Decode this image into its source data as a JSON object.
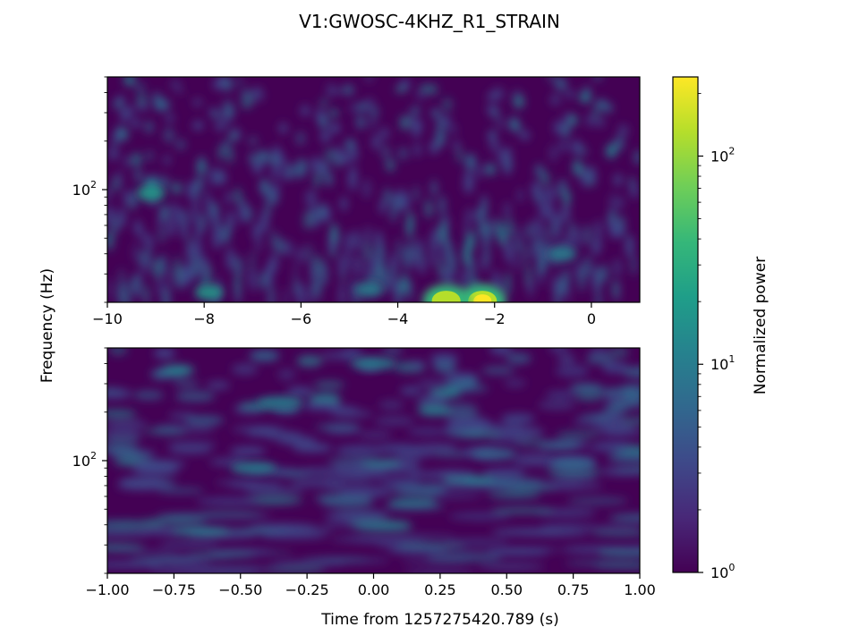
{
  "title": "V1:GWOSC-4KHZ_R1_STRAIN",
  "ylabel": "Frequency (Hz)",
  "xlabel": "Time from 1257275420.789 (s)",
  "colorbar": {
    "label": "Normalized power",
    "scale": "log",
    "range": [
      1,
      240
    ],
    "ticks": [
      {
        "value": 1,
        "base": "10",
        "exp": "0"
      },
      {
        "value": 10,
        "base": "10",
        "exp": "1"
      },
      {
        "value": 100,
        "base": "10",
        "exp": "2"
      }
    ],
    "colormap": [
      "#440154",
      "#482878",
      "#3e4989",
      "#31688e",
      "#26828e",
      "#1f9e89",
      "#35b779",
      "#6ece58",
      "#b5de2b",
      "#fde725"
    ]
  },
  "chart_data": [
    {
      "type": "heatmap",
      "panel": "top",
      "xlim": [
        -10,
        1
      ],
      "yscale": "log",
      "ylim": [
        20,
        500
      ],
      "xticks": [
        {
          "value": -10,
          "label": "−10"
        },
        {
          "value": -8,
          "label": "−8"
        },
        {
          "value": -6,
          "label": "−6"
        },
        {
          "value": -4,
          "label": "−4"
        },
        {
          "value": -2,
          "label": "−2"
        },
        {
          "value": 0,
          "label": "0"
        }
      ],
      "yticks": [
        {
          "value": 100,
          "base": "10",
          "exp": "2"
        }
      ],
      "background": "#440154",
      "blobs": [
        {
          "t": -2.25,
          "f": 20.5,
          "power": 240,
          "label": "bright spot"
        },
        {
          "t": -3.0,
          "f": 20.5,
          "power": 160,
          "label": "bright spot"
        },
        {
          "t": -7.9,
          "f": 23,
          "power": 18
        },
        {
          "t": -4.6,
          "f": 24,
          "power": 14
        },
        {
          "t": -9.1,
          "f": 95,
          "power": 20
        },
        {
          "t": -0.6,
          "f": 40,
          "power": 12
        }
      ]
    },
    {
      "type": "heatmap",
      "panel": "bottom",
      "xlim": [
        -1,
        1
      ],
      "yscale": "log",
      "ylim": [
        20,
        500
      ],
      "xticks": [
        {
          "value": -1.0,
          "label": "−1.00"
        },
        {
          "value": -0.75,
          "label": "−0.75"
        },
        {
          "value": -0.5,
          "label": "−0.50"
        },
        {
          "value": -0.25,
          "label": "−0.25"
        },
        {
          "value": 0.0,
          "label": "0.00"
        },
        {
          "value": 0.25,
          "label": "0.25"
        },
        {
          "value": 0.5,
          "label": "0.50"
        },
        {
          "value": 0.75,
          "label": "0.75"
        },
        {
          "value": 1.0,
          "label": "1.00"
        }
      ],
      "yticks": [
        {
          "value": 100,
          "base": "10",
          "exp": "2"
        }
      ],
      "background": "#440154",
      "blobs": [
        {
          "t": -0.45,
          "f": 90,
          "power": 14
        },
        {
          "t": -0.35,
          "f": 230,
          "power": 12
        },
        {
          "t": 0.0,
          "f": 400,
          "power": 10
        },
        {
          "t": 0.75,
          "f": 95,
          "power": 8
        },
        {
          "t": 0.45,
          "f": 110,
          "power": 8
        }
      ]
    }
  ]
}
